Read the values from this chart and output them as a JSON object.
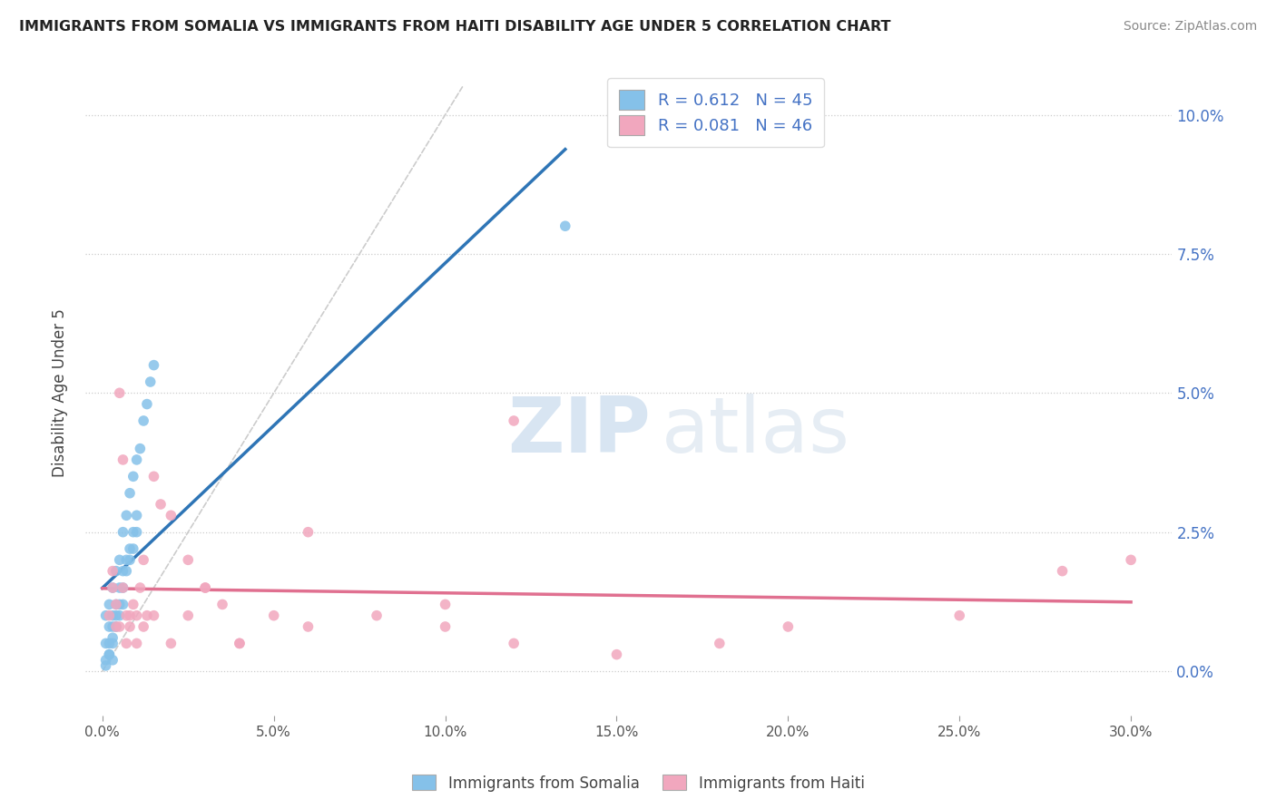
{
  "title": "IMMIGRANTS FROM SOMALIA VS IMMIGRANTS FROM HAITI DISABILITY AGE UNDER 5 CORRELATION CHART",
  "source": "Source: ZipAtlas.com",
  "ylabel": "Disability Age Under 5",
  "somalia_color": "#85C1E9",
  "haiti_color": "#F1A7BE",
  "somalia_R": 0.612,
  "somalia_N": 45,
  "haiti_R": 0.081,
  "haiti_N": 46,
  "trendline_somalia_color": "#2E75B6",
  "trendline_haiti_color": "#E07090",
  "trendline_dashed_color": "#BBBBBB",
  "watermark_zip": "ZIP",
  "watermark_atlas": "atlas",
  "legend_label_somalia": "Immigrants from Somalia",
  "legend_label_haiti": "Immigrants from Haiti",
  "somalia_x": [
    0.001,
    0.001,
    0.002,
    0.002,
    0.002,
    0.003,
    0.003,
    0.003,
    0.004,
    0.004,
    0.004,
    0.005,
    0.005,
    0.005,
    0.006,
    0.006,
    0.006,
    0.007,
    0.007,
    0.008,
    0.008,
    0.009,
    0.009,
    0.01,
    0.01,
    0.011,
    0.012,
    0.013,
    0.014,
    0.015,
    0.001,
    0.002,
    0.003,
    0.004,
    0.005,
    0.006,
    0.007,
    0.008,
    0.009,
    0.01,
    0.001,
    0.002,
    0.003,
    0.003,
    0.135
  ],
  "somalia_y": [
    0.005,
    0.01,
    0.012,
    0.008,
    0.003,
    0.015,
    0.01,
    0.005,
    0.018,
    0.012,
    0.008,
    0.02,
    0.015,
    0.01,
    0.025,
    0.018,
    0.012,
    0.028,
    0.02,
    0.032,
    0.022,
    0.035,
    0.025,
    0.038,
    0.028,
    0.04,
    0.045,
    0.048,
    0.052,
    0.055,
    0.002,
    0.005,
    0.008,
    0.01,
    0.012,
    0.015,
    0.018,
    0.02,
    0.022,
    0.025,
    0.001,
    0.003,
    0.002,
    0.006,
    0.08
  ],
  "haiti_x": [
    0.002,
    0.003,
    0.004,
    0.005,
    0.006,
    0.007,
    0.008,
    0.009,
    0.01,
    0.011,
    0.012,
    0.013,
    0.015,
    0.017,
    0.02,
    0.025,
    0.03,
    0.035,
    0.04,
    0.05,
    0.06,
    0.08,
    0.1,
    0.12,
    0.15,
    0.18,
    0.2,
    0.25,
    0.3,
    0.003,
    0.004,
    0.005,
    0.006,
    0.007,
    0.008,
    0.01,
    0.012,
    0.015,
    0.02,
    0.025,
    0.03,
    0.04,
    0.06,
    0.1,
    0.28,
    0.12
  ],
  "haiti_y": [
    0.01,
    0.018,
    0.012,
    0.008,
    0.015,
    0.01,
    0.008,
    0.012,
    0.01,
    0.015,
    0.02,
    0.01,
    0.035,
    0.03,
    0.005,
    0.02,
    0.015,
    0.012,
    0.005,
    0.01,
    0.025,
    0.01,
    0.008,
    0.005,
    0.003,
    0.005,
    0.008,
    0.01,
    0.02,
    0.015,
    0.008,
    0.05,
    0.038,
    0.005,
    0.01,
    0.005,
    0.008,
    0.01,
    0.028,
    0.01,
    0.015,
    0.005,
    0.008,
    0.012,
    0.018,
    0.045
  ],
  "xlim": [
    -0.005,
    0.312
  ],
  "ylim": [
    -0.008,
    0.108
  ],
  "xticks": [
    0.0,
    0.05,
    0.1,
    0.15,
    0.2,
    0.25,
    0.3
  ],
  "xticklabels": [
    "0.0%",
    "5.0%",
    "10.0%",
    "15.0%",
    "20.0%",
    "25.0%",
    "30.0%"
  ],
  "yticks": [
    0.0,
    0.025,
    0.05,
    0.075,
    0.1
  ],
  "yticklabels": [
    "0.0%",
    "2.5%",
    "5.0%",
    "7.5%",
    "10.0%"
  ]
}
